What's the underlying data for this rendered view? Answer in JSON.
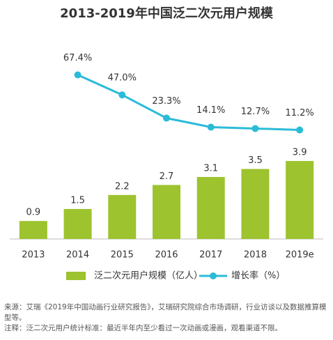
{
  "chart_data": {
    "type": "bar_line",
    "title": "2013-2019年中国泛二次元用户规模",
    "categories": [
      "2013",
      "2014",
      "2015",
      "2016",
      "2017",
      "2018",
      "2019e"
    ],
    "series": [
      {
        "name": "泛二次元用户规模（亿人）",
        "color": "#9dc32e",
        "type": "bar",
        "values": [
          0.9,
          1.5,
          2.2,
          2.7,
          3.1,
          3.5,
          3.9
        ]
      },
      {
        "name": "增长率（%）",
        "color": "#2bbbd8",
        "type": "line",
        "axis": "y2",
        "values": [
          null,
          67.4,
          47.0,
          23.3,
          14.1,
          12.7,
          11.2
        ],
        "value_labels": [
          null,
          "67.4%",
          "47.0%",
          "23.3%",
          "14.1%",
          "12.7%",
          "11.2%"
        ]
      }
    ],
    "ylim": [
      0,
      10
    ],
    "y2lim": [
      -100,
      104
    ],
    "source": "来源：艾瑞《2019年中国动画行业研究报告》，艾瑞研究院综合市场调研，行业访谈以及数据推算模型等。",
    "note": "注释：泛二次元用户统计标准：最近半年内至少看过一次动画或漫画，观看渠道不限。"
  }
}
